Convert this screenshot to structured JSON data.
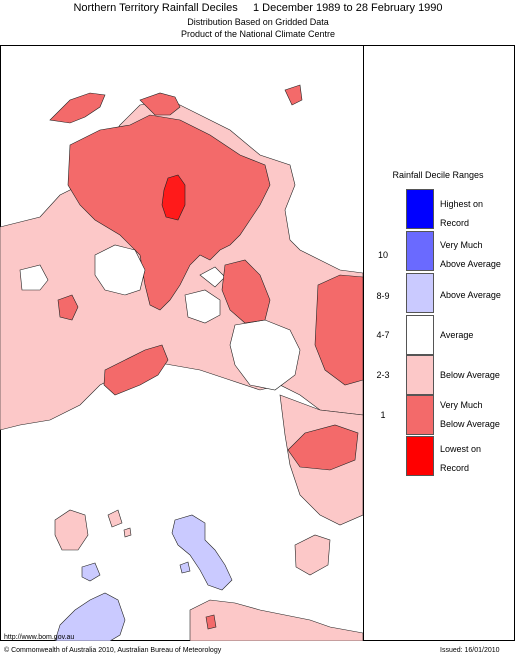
{
  "title": "Northern Territory Rainfall Deciles     1 December 1989 to 28 February 1990",
  "subtitle1": "Distribution Based on Gridded Data",
  "subtitle2": "Product of the National Climate Centre",
  "legend": {
    "title": "Rainfall Decile Ranges",
    "items": [
      {
        "decile": "",
        "line1": "Highest on",
        "line2": "Record",
        "color": "#0000ff"
      },
      {
        "decile": "10",
        "line1": "Very Much",
        "line2": "Above Average",
        "color": "#6a6aff"
      },
      {
        "decile": "8-9",
        "line1": "Above Average",
        "line2": "",
        "color": "#cacaff"
      },
      {
        "decile": "4-7",
        "line1": "Average",
        "line2": "",
        "color": "#ffffff"
      },
      {
        "decile": "2-3",
        "line1": "Below Average",
        "line2": "",
        "color": "#fcc8c8"
      },
      {
        "decile": "1",
        "line1": "Very Much",
        "line2": "Below Average",
        "color": "#f36a6a"
      },
      {
        "decile": "",
        "line1": "Lowest on",
        "line2": "Record",
        "color": "#ff0000"
      }
    ]
  },
  "footer": {
    "url": "http://www.bom.gov.au",
    "copyright": "© Commonwealth of Australia 2010, Australian Bureau of Meteorology",
    "issued": "Issued: 16/01/2010"
  }
}
